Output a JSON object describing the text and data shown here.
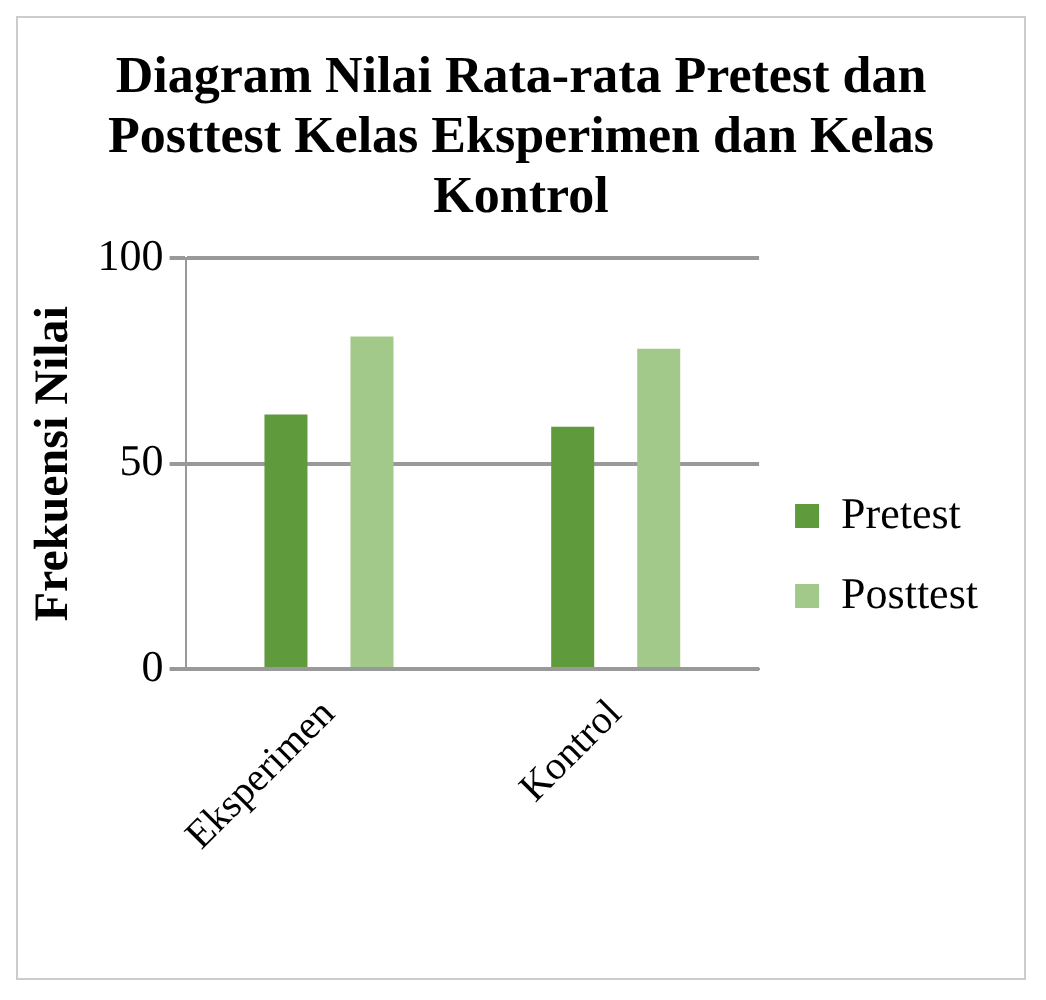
{
  "chart_data": {
    "type": "bar",
    "title": "Diagram Nilai Rata-rata Pretest dan Posttest Kelas Eksperimen dan Kelas Kontrol",
    "ylabel": "Frekuensi Nilai",
    "categories": [
      "Eksperimen",
      "Kontrol"
    ],
    "series": [
      {
        "name": "Pretest",
        "color": "#5f9a3c",
        "values": [
          62,
          59
        ]
      },
      {
        "name": "Posttest",
        "color": "#a3c98a",
        "values": [
          81,
          78
        ]
      }
    ],
    "ylim": [
      0,
      100
    ],
    "yticks": [
      0,
      50,
      100
    ],
    "grid": "y",
    "legend": "right"
  }
}
